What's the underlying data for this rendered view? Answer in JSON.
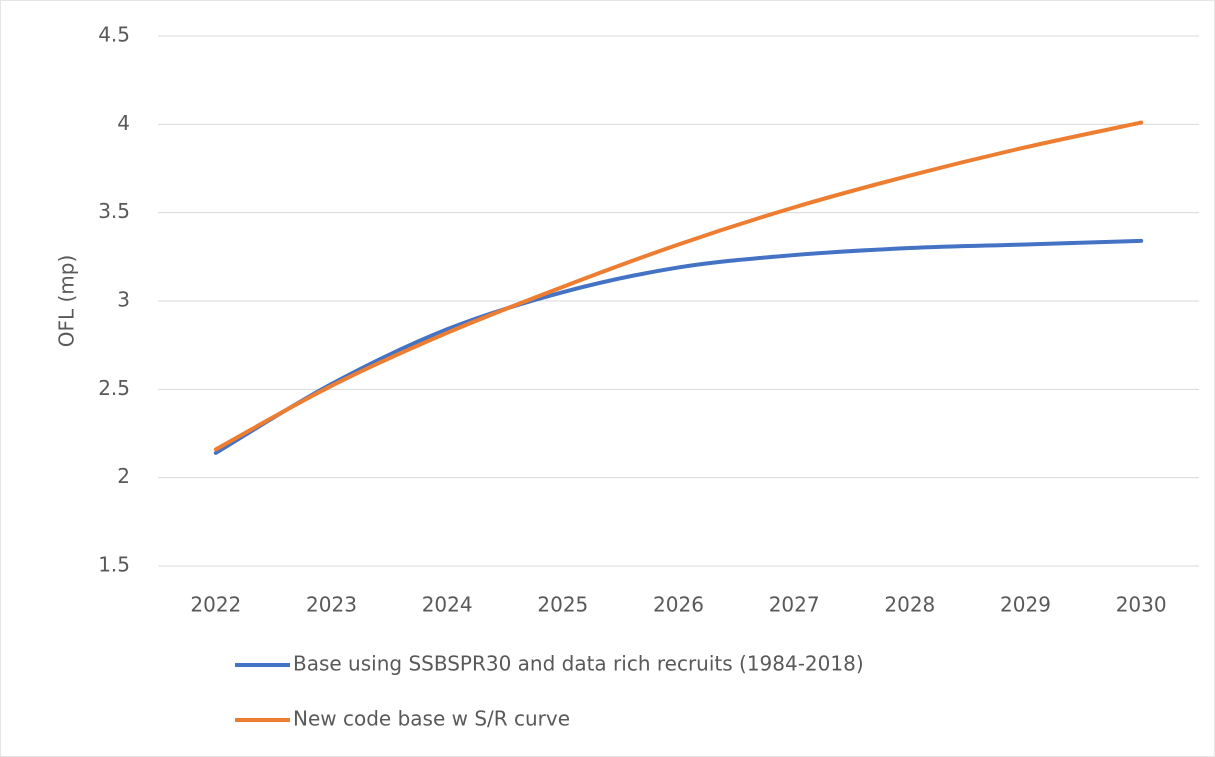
{
  "chart_data": {
    "type": "line",
    "y_label": "OFL (mp)",
    "categories": [
      "2022",
      "2023",
      "2024",
      "2025",
      "2026",
      "2027",
      "2028",
      "2029",
      "2030"
    ],
    "series": [
      {
        "name": "Base using SSBSPR30 and data rich recruits (1984-2018)",
        "color": "#4472c4",
        "values": [
          2.14,
          2.53,
          2.84,
          3.05,
          3.19,
          3.26,
          3.3,
          3.32,
          3.34
        ]
      },
      {
        "name": "New code base w S/R curve",
        "color": "#ed7d31",
        "values": [
          2.16,
          2.52,
          2.82,
          3.08,
          3.32,
          3.53,
          3.71,
          3.87,
          4.01
        ]
      }
    ],
    "ylim": [
      1.5,
      4.5
    ],
    "yticks": [
      1.5,
      2,
      2.5,
      3,
      3.5,
      4,
      4.5
    ],
    "grid": true,
    "legend": "bottom"
  }
}
